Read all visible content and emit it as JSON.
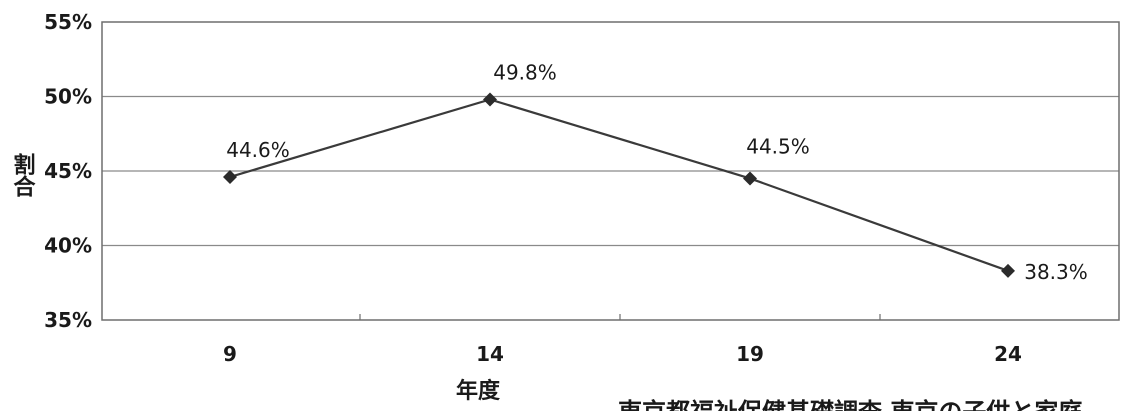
{
  "chart_data": {
    "type": "line",
    "categories": [
      "9",
      "14",
      "19",
      "24"
    ],
    "series": [
      {
        "values": [
          44.6,
          49.8,
          44.5,
          38.3
        ]
      }
    ],
    "data_labels": [
      "44.6%",
      "49.8%",
      "44.5%",
      "38.3%"
    ],
    "y_ticks": [
      "35%",
      "40%",
      "45%",
      "50%",
      "55%"
    ],
    "ylim": [
      35,
      55
    ],
    "xlabel": "年度",
    "ylabel": "割合",
    "grid": true,
    "legend": "none",
    "line_color": "#3a3a3a",
    "marker": "diamond"
  },
  "source_note": "東京都福祉保健基礎調査 東京の子供と家庭"
}
